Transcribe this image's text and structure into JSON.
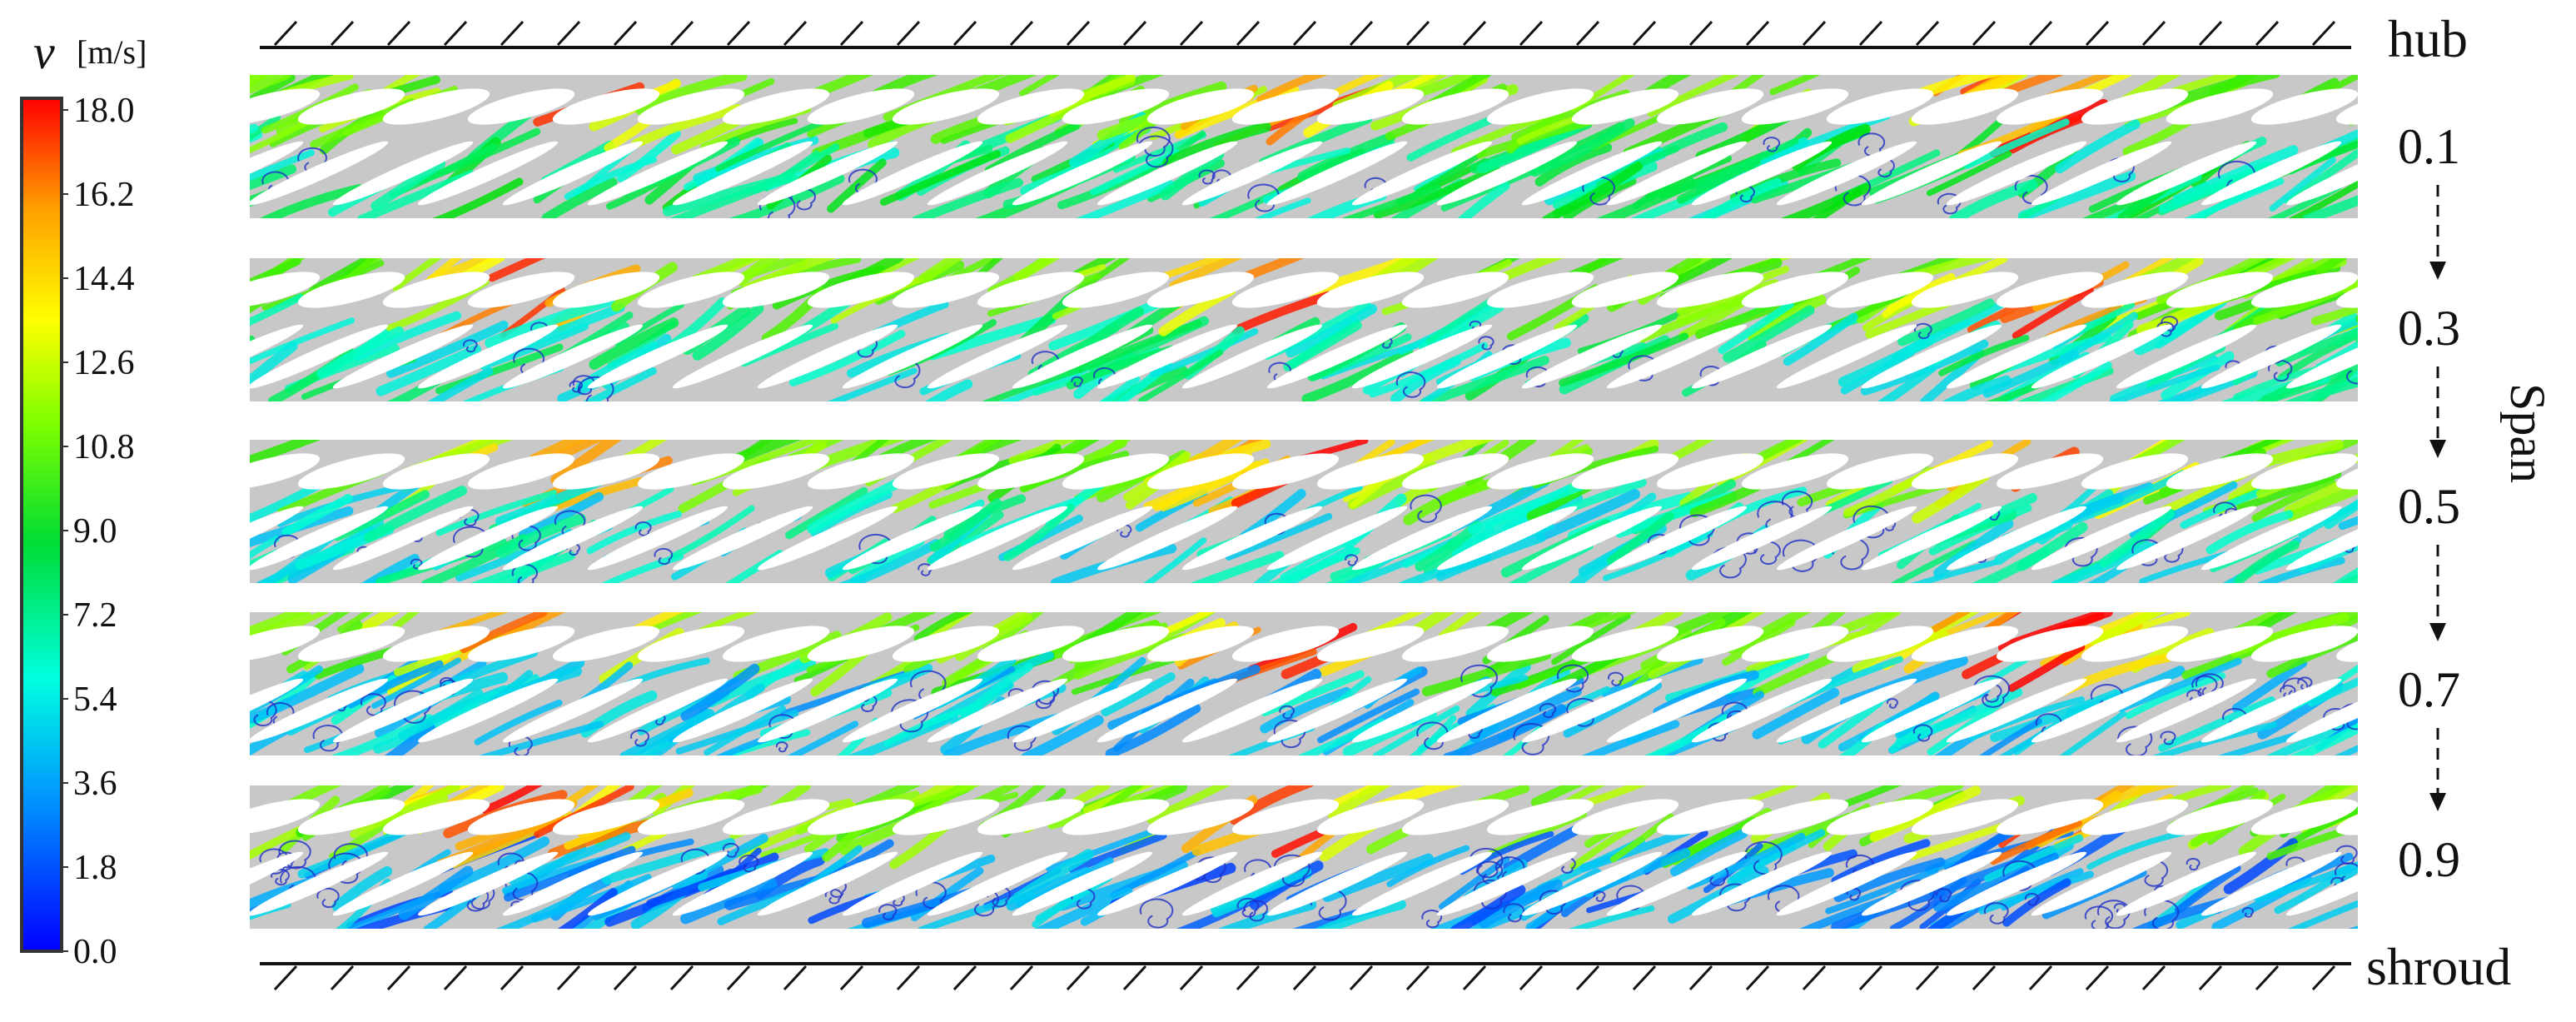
{
  "colorbar": {
    "symbol": "v",
    "unit": "[m/s]",
    "ticks": [
      "18.0",
      "16.2",
      "14.4",
      "12.6",
      "10.8",
      "9.0",
      "7.2",
      "5.4",
      "3.6",
      "1.8",
      "0.0"
    ],
    "range": [
      0.0,
      18.0
    ],
    "colors": [
      "#0000ff",
      "#00b4ff",
      "#00ffd2",
      "#00e000",
      "#7fff00",
      "#ffff00",
      "#ffa000",
      "#ff0000"
    ]
  },
  "walls": {
    "top": "hub",
    "bottom": "shroud"
  },
  "spans": {
    "axis_label": "Span",
    "levels": [
      "0.1",
      "0.3",
      "0.5",
      "0.7",
      "0.9"
    ]
  },
  "colors": {
    "background": "#c8c8c8",
    "blade": "#ffffff",
    "vortex": "#1f2fc8",
    "line": "#111111"
  },
  "icons": [
    "wall-hatch-icon",
    "down-arrow-icon"
  ]
}
